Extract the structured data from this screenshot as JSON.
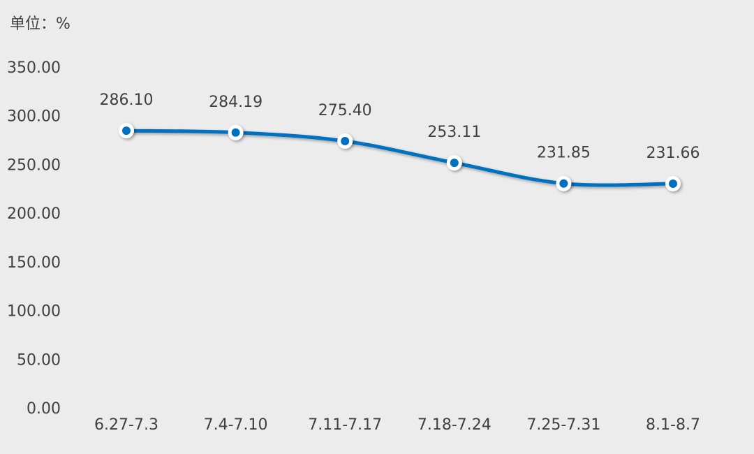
{
  "chart_data": {
    "type": "line",
    "y_axis_label": "单位：%",
    "categories": [
      "6.27-7.3",
      "7.4-7.10",
      "7.11-7.17",
      "7.18-7.24",
      "7.25-7.31",
      "8.1-8.7"
    ],
    "series": [
      {
        "color": "#0070c0",
        "values": [
          286.1,
          284.19,
          275.4,
          253.11,
          231.85,
          231.66
        ],
        "value_labels": [
          "286.10",
          "284.19",
          "275.40",
          "253.11",
          "231.85",
          "231.66"
        ]
      }
    ],
    "ylim": [
      0,
      350
    ],
    "yticks": [
      {
        "value": 0,
        "label": "0.00"
      },
      {
        "value": 50,
        "label": "50.00"
      },
      {
        "value": 100,
        "label": "100.00"
      },
      {
        "value": 150,
        "label": "150.00"
      },
      {
        "value": 200,
        "label": "200.00"
      },
      {
        "value": 250,
        "label": "250.00"
      },
      {
        "value": 300,
        "label": "300.00"
      },
      {
        "value": 350,
        "label": "350.00"
      }
    ],
    "smooth": true
  }
}
